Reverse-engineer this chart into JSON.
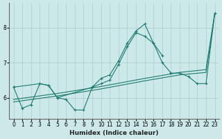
{
  "xlabel": "Humidex (Indice chaleur)",
  "color": "#1a7a6e",
  "bg_color": "#cce8e8",
  "grid_color": "#aacccc",
  "ylim": [
    5.4,
    8.7
  ],
  "xlim": [
    -0.5,
    23.5
  ],
  "yticks": [
    6,
    7,
    8
  ],
  "xticks": [
    0,
    1,
    2,
    3,
    4,
    5,
    6,
    7,
    8,
    9,
    10,
    11,
    12,
    13,
    14,
    15,
    16,
    17,
    18,
    19,
    20,
    21,
    22,
    23
  ],
  "line_jagged_x": [
    0,
    1,
    2,
    3,
    4,
    5,
    6,
    7,
    8,
    9,
    10,
    11,
    12,
    13,
    14,
    15,
    16,
    17,
    18,
    19,
    20,
    21,
    22,
    23
  ],
  "line_jagged_y": [
    6.3,
    5.7,
    5.8,
    6.4,
    6.35,
    6.0,
    5.95,
    5.65,
    5.65,
    6.3,
    6.55,
    6.65,
    7.05,
    7.55,
    7.9,
    8.1,
    7.55,
    7.0,
    6.7,
    6.7,
    6.6,
    6.4,
    6.4,
    8.4
  ],
  "line_upper_x": [
    0,
    3,
    4,
    5,
    9,
    10,
    11,
    12,
    13,
    14,
    15,
    16,
    17,
    18,
    19,
    20,
    21,
    22,
    23
  ],
  "line_upper_y": [
    6.3,
    6.4,
    6.35,
    6.0,
    6.3,
    6.4,
    6.5,
    6.95,
    7.45,
    7.85,
    7.75,
    7.55,
    7.2,
    null,
    null,
    null,
    null,
    null,
    null
  ],
  "line_reg1_x": [
    0,
    5,
    10,
    15,
    19,
    22,
    23
  ],
  "line_reg1_y": [
    5.88,
    6.05,
    6.25,
    6.48,
    6.65,
    6.72,
    8.4
  ],
  "line_reg2_x": [
    0,
    5,
    10,
    15,
    19,
    22,
    23
  ],
  "line_reg2_y": [
    5.95,
    6.12,
    6.32,
    6.55,
    6.72,
    6.8,
    8.4
  ]
}
